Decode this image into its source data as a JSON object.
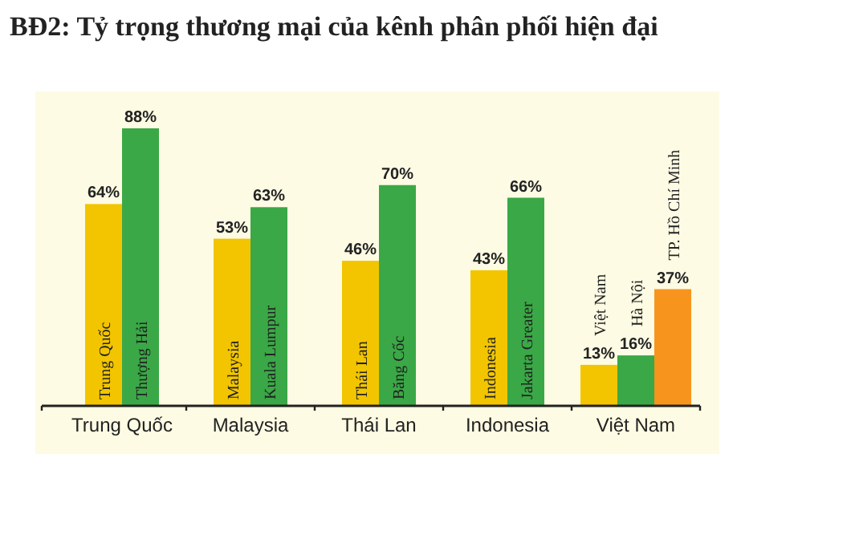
{
  "chart_data": {
    "type": "bar",
    "title": "BĐ2: Tỷ trọng thương mại của kênh phân phối hiện đại",
    "categories": [
      "Trung Quốc",
      "Malaysia",
      "Thái Lan",
      "Indonesia",
      "Việt Nam"
    ],
    "series": [
      {
        "color": "#f2c500",
        "values": [
          64,
          53,
          46,
          43,
          13
        ],
        "value_labels": [
          "64%",
          "53%",
          "46%",
          "43%",
          "13%"
        ]
      },
      {
        "color": "#3aa846",
        "values": [
          88,
          63,
          70,
          66,
          16
        ],
        "value_labels": [
          "88%",
          "63%",
          "70%",
          "66%",
          "16%"
        ]
      },
      {
        "color": "#f7941d",
        "values": [
          null,
          null,
          null,
          null,
          37
        ],
        "value_labels": [
          null,
          null,
          null,
          null,
          "37%"
        ]
      }
    ],
    "annotations": [
      "Trung Quốc",
      "Thượng Hải",
      "Malaysia",
      "Kuala Lumpur",
      "Thái Lan",
      "Băng Cốc",
      "Indonesia",
      "Jakarta Greater",
      "Việt Nam",
      "Hà Nội",
      "TP. Hồ Chí Minh"
    ]
  }
}
